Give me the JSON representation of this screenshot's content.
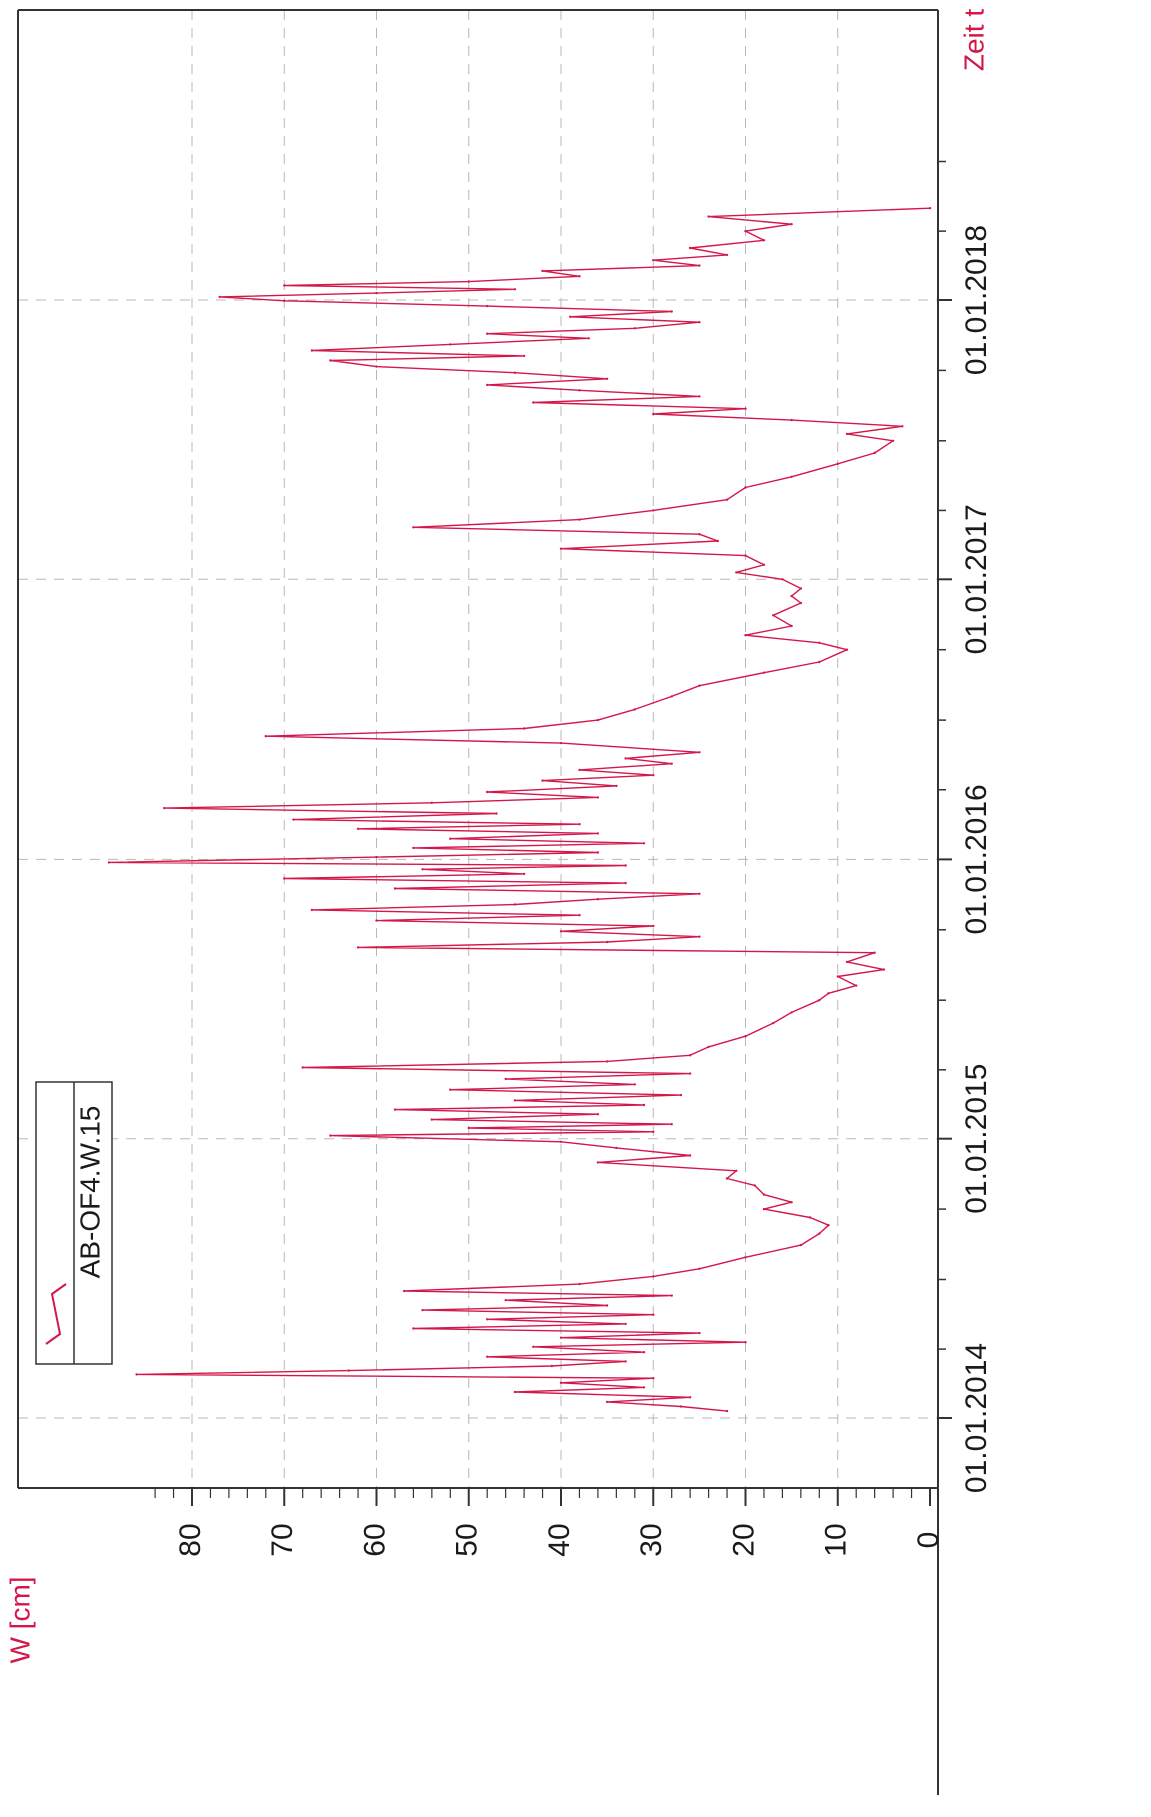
{
  "chart_data": {
    "type": "line",
    "title": "",
    "xlabel": "Zeit t",
    "ylabel": "W [cm]",
    "ylim": [
      0,
      90
    ],
    "yticks": [
      0,
      10,
      20,
      30,
      40,
      50,
      60,
      70,
      80
    ],
    "xlim": [
      "2014-01-01",
      "2018-07-20"
    ],
    "xtick_dates": [
      "2014-01-01",
      "2015-01-01",
      "2016-01-01",
      "2017-01-01",
      "2018-01-01"
    ],
    "xtick_labels": [
      "01.01.2014",
      "01.01.2015",
      "01.01.2016",
      "01.01.2017",
      "01.01.2018"
    ],
    "grid": true,
    "legend_position": "top-left",
    "colors": {
      "series": "#d4174a",
      "axis": "#333333",
      "grid": "#b8b8b8"
    },
    "series": [
      {
        "name": "AB-OF4.W.15",
        "points": [
          [
            "2014-01-10",
            22
          ],
          [
            "2014-01-16",
            27
          ],
          [
            "2014-01-22",
            35
          ],
          [
            "2014-01-28",
            26
          ],
          [
            "2014-02-04",
            45
          ],
          [
            "2014-02-10",
            31
          ],
          [
            "2014-02-16",
            40
          ],
          [
            "2014-02-22",
            30
          ],
          [
            "2014-02-27",
            86
          ],
          [
            "2014-03-04",
            63
          ],
          [
            "2014-03-10",
            41
          ],
          [
            "2014-03-16",
            33
          ],
          [
            "2014-03-22",
            48
          ],
          [
            "2014-03-28",
            31
          ],
          [
            "2014-04-04",
            43
          ],
          [
            "2014-04-10",
            20
          ],
          [
            "2014-04-16",
            40
          ],
          [
            "2014-04-22",
            25
          ],
          [
            "2014-04-28",
            56
          ],
          [
            "2014-05-04",
            33
          ],
          [
            "2014-05-10",
            48
          ],
          [
            "2014-05-16",
            30
          ],
          [
            "2014-05-22",
            55
          ],
          [
            "2014-05-28",
            35
          ],
          [
            "2014-06-04",
            46
          ],
          [
            "2014-06-10",
            28
          ],
          [
            "2014-06-16",
            57
          ],
          [
            "2014-06-25",
            38
          ],
          [
            "2014-07-05",
            30
          ],
          [
            "2014-07-15",
            25
          ],
          [
            "2014-07-30",
            20
          ],
          [
            "2014-08-15",
            14
          ],
          [
            "2014-08-30",
            12
          ],
          [
            "2014-09-10",
            11
          ],
          [
            "2014-09-20",
            13
          ],
          [
            "2014-10-01",
            18
          ],
          [
            "2014-10-10",
            15
          ],
          [
            "2014-10-20",
            18
          ],
          [
            "2014-11-01",
            19
          ],
          [
            "2014-11-10",
            22
          ],
          [
            "2014-11-20",
            21
          ],
          [
            "2014-12-01",
            36
          ],
          [
            "2014-12-10",
            26
          ],
          [
            "2014-12-20",
            34
          ],
          [
            "2014-12-28",
            40
          ],
          [
            "2015-01-05",
            65
          ],
          [
            "2015-01-10",
            30
          ],
          [
            "2015-01-15",
            50
          ],
          [
            "2015-01-20",
            28
          ],
          [
            "2015-01-26",
            54
          ],
          [
            "2015-02-02",
            36
          ],
          [
            "2015-02-08",
            58
          ],
          [
            "2015-02-14",
            31
          ],
          [
            "2015-02-20",
            45
          ],
          [
            "2015-02-27",
            27
          ],
          [
            "2015-03-06",
            52
          ],
          [
            "2015-03-13",
            32
          ],
          [
            "2015-03-20",
            46
          ],
          [
            "2015-03-27",
            26
          ],
          [
            "2015-04-04",
            68
          ],
          [
            "2015-04-12",
            35
          ],
          [
            "2015-04-20",
            26
          ],
          [
            "2015-05-01",
            24
          ],
          [
            "2015-05-15",
            20
          ],
          [
            "2015-06-01",
            17
          ],
          [
            "2015-06-15",
            15
          ],
          [
            "2015-07-01",
            12
          ],
          [
            "2015-07-10",
            11
          ],
          [
            "2015-07-20",
            8
          ],
          [
            "2015-08-01",
            10
          ],
          [
            "2015-08-10",
            5
          ],
          [
            "2015-08-20",
            9
          ],
          [
            "2015-09-01",
            6
          ],
          [
            "2015-09-08",
            62
          ],
          [
            "2015-09-15",
            35
          ],
          [
            "2015-09-22",
            25
          ],
          [
            "2015-09-29",
            40
          ],
          [
            "2015-10-06",
            30
          ],
          [
            "2015-10-13",
            60
          ],
          [
            "2015-10-20",
            38
          ],
          [
            "2015-10-27",
            67
          ],
          [
            "2015-11-03",
            45
          ],
          [
            "2015-11-10",
            36
          ],
          [
            "2015-11-17",
            25
          ],
          [
            "2015-11-24",
            58
          ],
          [
            "2015-12-01",
            33
          ],
          [
            "2015-12-07",
            70
          ],
          [
            "2015-12-13",
            44
          ],
          [
            "2015-12-19",
            55
          ],
          [
            "2015-12-24",
            33
          ],
          [
            "2015-12-28",
            89
          ],
          [
            "2016-01-04",
            60
          ],
          [
            "2016-01-10",
            36
          ],
          [
            "2016-01-16",
            56
          ],
          [
            "2016-01-22",
            31
          ],
          [
            "2016-01-28",
            52
          ],
          [
            "2016-02-04",
            36
          ],
          [
            "2016-02-10",
            62
          ],
          [
            "2016-02-16",
            38
          ],
          [
            "2016-02-22",
            69
          ],
          [
            "2016-03-01",
            47
          ],
          [
            "2016-03-08",
            83
          ],
          [
            "2016-03-15",
            54
          ],
          [
            "2016-03-22",
            36
          ],
          [
            "2016-03-29",
            48
          ],
          [
            "2016-04-06",
            34
          ],
          [
            "2016-04-13",
            42
          ],
          [
            "2016-04-20",
            30
          ],
          [
            "2016-04-27",
            38
          ],
          [
            "2016-05-05",
            28
          ],
          [
            "2016-05-12",
            33
          ],
          [
            "2016-05-20",
            25
          ],
          [
            "2016-06-01",
            40
          ],
          [
            "2016-06-10",
            72
          ],
          [
            "2016-06-20",
            44
          ],
          [
            "2016-07-01",
            36
          ],
          [
            "2016-07-15",
            32
          ],
          [
            "2016-08-01",
            28
          ],
          [
            "2016-08-15",
            25
          ],
          [
            "2016-09-01",
            18
          ],
          [
            "2016-09-15",
            12
          ],
          [
            "2016-10-01",
            9
          ],
          [
            "2016-10-10",
            12
          ],
          [
            "2016-10-20",
            20
          ],
          [
            "2016-11-01",
            15
          ],
          [
            "2016-11-15",
            17
          ],
          [
            "2016-12-01",
            14
          ],
          [
            "2016-12-10",
            15
          ],
          [
            "2016-12-20",
            14
          ],
          [
            "2017-01-01",
            16
          ],
          [
            "2017-01-10",
            21
          ],
          [
            "2017-01-20",
            18
          ],
          [
            "2017-02-01",
            20
          ],
          [
            "2017-02-10",
            40
          ],
          [
            "2017-02-20",
            23
          ],
          [
            "2017-03-01",
            25
          ],
          [
            "2017-03-10",
            56
          ],
          [
            "2017-03-20",
            38
          ],
          [
            "2017-04-01",
            30
          ],
          [
            "2017-04-15",
            22
          ],
          [
            "2017-05-01",
            20
          ],
          [
            "2017-05-15",
            15
          ],
          [
            "2017-06-01",
            10
          ],
          [
            "2017-06-15",
            6
          ],
          [
            "2017-07-01",
            4
          ],
          [
            "2017-07-10",
            9
          ],
          [
            "2017-07-20",
            3
          ],
          [
            "2017-07-28",
            15
          ],
          [
            "2017-08-05",
            30
          ],
          [
            "2017-08-12",
            20
          ],
          [
            "2017-08-20",
            43
          ],
          [
            "2017-08-28",
            25
          ],
          [
            "2017-09-05",
            38
          ],
          [
            "2017-09-12",
            48
          ],
          [
            "2017-09-20",
            35
          ],
          [
            "2017-09-28",
            45
          ],
          [
            "2017-10-06",
            60
          ],
          [
            "2017-10-14",
            65
          ],
          [
            "2017-10-20",
            44
          ],
          [
            "2017-10-27",
            67
          ],
          [
            "2017-11-04",
            52
          ],
          [
            "2017-11-12",
            37
          ],
          [
            "2017-11-18",
            48
          ],
          [
            "2017-11-25",
            32
          ],
          [
            "2017-12-03",
            25
          ],
          [
            "2017-12-10",
            39
          ],
          [
            "2017-12-17",
            28
          ],
          [
            "2017-12-24",
            48
          ],
          [
            "2017-12-31",
            70
          ],
          [
            "2018-01-05",
            77
          ],
          [
            "2018-01-10",
            60
          ],
          [
            "2018-01-15",
            45
          ],
          [
            "2018-01-20",
            70
          ],
          [
            "2018-01-25",
            50
          ],
          [
            "2018-02-01",
            38
          ],
          [
            "2018-02-08",
            42
          ],
          [
            "2018-02-15",
            25
          ],
          [
            "2018-02-22",
            30
          ],
          [
            "2018-03-01",
            22
          ],
          [
            "2018-03-10",
            26
          ],
          [
            "2018-03-20",
            18
          ],
          [
            "2018-04-01",
            20
          ],
          [
            "2018-04-10",
            15
          ],
          [
            "2018-04-20",
            24
          ],
          [
            "2018-05-01",
            0
          ]
        ]
      }
    ]
  }
}
